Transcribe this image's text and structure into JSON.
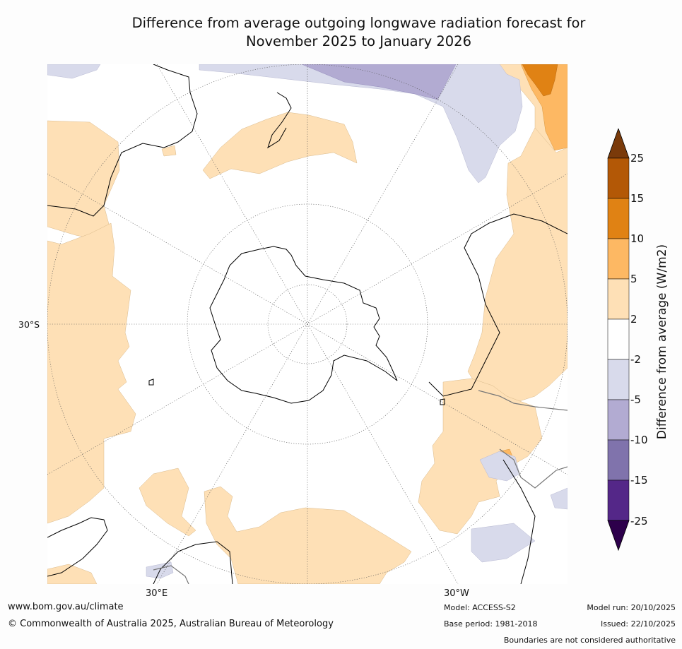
{
  "title": {
    "line1": "Difference from average outgoing longwave radiation forecast for",
    "line2": "November 2025 to January 2026"
  },
  "map": {
    "projection": "south-polar-stereographic",
    "lat_label": "30°S",
    "lon_labels": [
      "30°E",
      "30°W"
    ]
  },
  "colorbar": {
    "label": "Difference from average (W/m2)",
    "ticks": [
      "25",
      "15",
      "10",
      "5",
      "2",
      "-2",
      "-5",
      "-10",
      "-15",
      "-25"
    ],
    "colors": [
      "#7a3a0a",
      "#b35806",
      "#e08214",
      "#fdb863",
      "#fee0b6",
      "#ffffff",
      "#d8daeb",
      "#b2abd2",
      "#8073ac",
      "#542788",
      "#2d004b"
    ]
  },
  "footer": {
    "url": "www.bom.gov.au/climate",
    "copyright": "© Commonwealth of Australia 2025, Australian Bureau of Meteorology",
    "model": "Model: ACCESS-S2",
    "base_period": "Base period: 1981-2018",
    "model_run": "Model run: 20/10/2025",
    "issued": "Issued: 22/10/2025",
    "disclaimer": "Boundaries are not considered authoritative"
  }
}
